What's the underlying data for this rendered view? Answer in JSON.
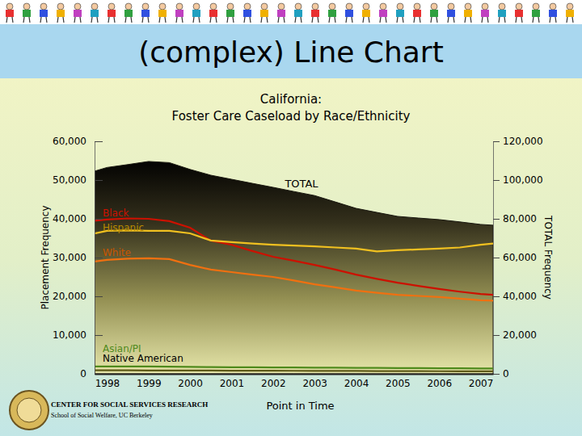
{
  "slide_title": "(complex) Line Chart",
  "footer": [
    "CENTER FOR SOCIAL SERVICES RESEARCH",
    "School of Social Welfare, UC Berkeley"
  ],
  "chart_data": {
    "type": "line",
    "title": "California:",
    "subtitle": "Foster Care Caseload by Race/Ethnicity",
    "x_label": "Point in Time",
    "y_label": "Placement Frequency",
    "y2_label": "TOTAL Frequency",
    "x": [
      1997.7,
      1998,
      1998.5,
      1999,
      1999.5,
      2000,
      2000.5,
      2001,
      2001.5,
      2002,
      2002.5,
      2003,
      2003.5,
      2004,
      2004.5,
      2005,
      2005.5,
      2006,
      2006.5,
      2007,
      2007.3
    ],
    "xlim": [
      1997.7,
      2007.3
    ],
    "xticks": [
      1998,
      1999,
      2000,
      2001,
      2002,
      2003,
      2004,
      2005,
      2006,
      2007
    ],
    "ylim": [
      0,
      60000
    ],
    "yticks": [
      0,
      {
        "value": 10000,
        "label": "10,000"
      },
      {
        "value": 20000,
        "label": "20,000"
      },
      {
        "value": 30000,
        "label": "30,000"
      },
      {
        "value": 40000,
        "label": "40,000"
      },
      {
        "value": 50000,
        "label": "50,000"
      },
      {
        "value": 60000,
        "label": "60,000"
      }
    ],
    "y2lim": [
      0,
      120000
    ],
    "y2ticks": [
      0,
      {
        "value": 20000,
        "label": "20,000"
      },
      {
        "value": 40000,
        "label": "40,000"
      },
      {
        "value": 60000,
        "label": "60,000"
      },
      {
        "value": 80000,
        "label": "80,000"
      },
      {
        "value": 100000,
        "label": "100,000"
      },
      {
        "value": 120000,
        "label": "120,000"
      }
    ],
    "grid": false,
    "series": [
      {
        "name": "TOTAL",
        "type": "area",
        "axis": "y2",
        "color": "#1a1810",
        "values": [
          104600,
          106500,
          108000,
          109600,
          109000,
          105500,
          102500,
          100400,
          98300,
          96250,
          94100,
          92000,
          88700,
          85400,
          83300,
          81250,
          80400,
          79600,
          78400,
          77100,
          76700
        ]
      },
      {
        "name": "Black",
        "color": "#cc1100",
        "values": [
          39500,
          39800,
          40100,
          40000,
          39400,
          37700,
          34400,
          33300,
          31700,
          30200,
          29200,
          28100,
          26900,
          25600,
          24500,
          23500,
          22700,
          21900,
          21200,
          20600,
          20400
        ]
      },
      {
        "name": "Hispanic",
        "color": "#f0c020",
        "values": [
          36200,
          36900,
          37000,
          36900,
          36900,
          36250,
          34400,
          34000,
          33600,
          33300,
          33100,
          32900,
          32600,
          32300,
          31600,
          31900,
          32100,
          32300,
          32600,
          33300,
          33600
        ]
      },
      {
        "name": "White",
        "color": "#f07010",
        "values": [
          29000,
          29400,
          29700,
          29800,
          29600,
          28100,
          26900,
          26250,
          25600,
          25000,
          24100,
          23100,
          22300,
          21500,
          20900,
          20400,
          20100,
          19800,
          19400,
          19000,
          18900
        ]
      },
      {
        "name": "Asian/PI",
        "color": "#4f8a1c",
        "values": [
          1900,
          1900,
          1900,
          1900,
          1850,
          1800,
          1750,
          1700,
          1700,
          1650,
          1650,
          1600,
          1600,
          1550,
          1550,
          1500,
          1500,
          1450,
          1450,
          1400,
          1400
        ]
      },
      {
        "name": "Native American",
        "color": "#5e5a18",
        "values": [
          900,
          900,
          900,
          880,
          870,
          860,
          840,
          820,
          800,
          790,
          780,
          760,
          750,
          740,
          720,
          700,
          690,
          680,
          660,
          650,
          640
        ]
      }
    ]
  }
}
